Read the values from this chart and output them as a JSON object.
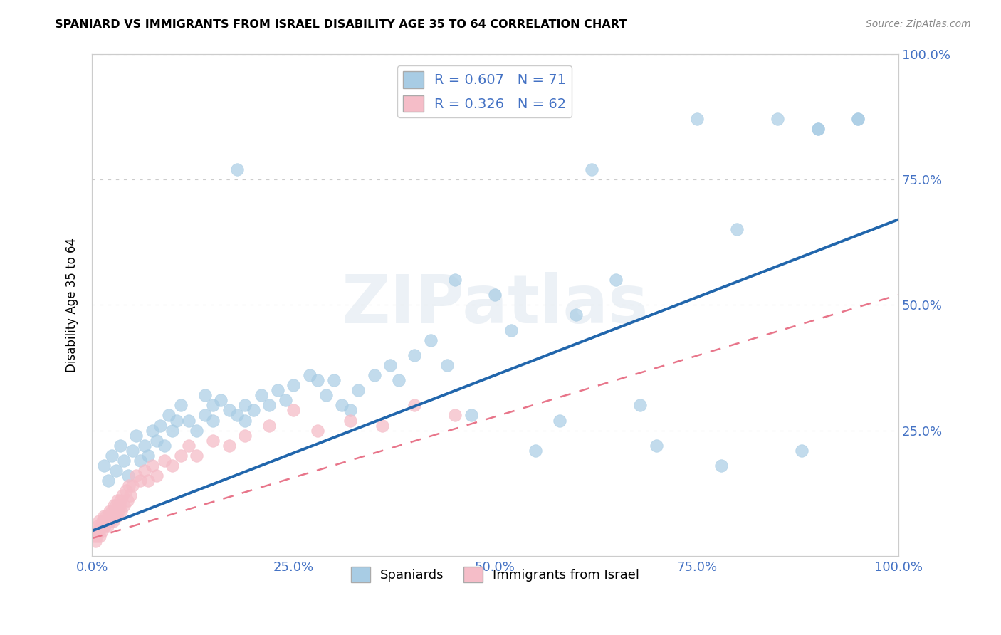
{
  "title": "SPANIARD VS IMMIGRANTS FROM ISRAEL DISABILITY AGE 35 TO 64 CORRELATION CHART",
  "source": "Source: ZipAtlas.com",
  "ylabel": "Disability Age 35 to 64",
  "xlim": [
    0.0,
    1.0
  ],
  "ylim": [
    0.0,
    1.0
  ],
  "xtick_labels": [
    "0.0%",
    "25.0%",
    "50.0%",
    "75.0%",
    "100.0%"
  ],
  "xtick_positions": [
    0.0,
    0.25,
    0.5,
    0.75,
    1.0
  ],
  "ytick_labels": [
    "100.0%",
    "75.0%",
    "50.0%",
    "25.0%"
  ],
  "ytick_positions": [
    1.0,
    0.75,
    0.5,
    0.25
  ],
  "blue_fill_color": "#a8cce4",
  "blue_line_color": "#2166ac",
  "pink_fill_color": "#f5bdc8",
  "pink_line_color": "#e8758a",
  "axis_label_color": "#4472c4",
  "R_blue": 0.607,
  "N_blue": 71,
  "R_pink": 0.326,
  "N_pink": 62,
  "legend_label_blue": "Spaniards",
  "legend_label_pink": "Immigrants from Israel",
  "watermark": "ZIPatlas",
  "bg_color": "#ffffff",
  "grid_color": "#cccccc",
  "blue_line_x0": 0.0,
  "blue_line_y0": 0.05,
  "blue_line_x1": 1.0,
  "blue_line_y1": 0.67,
  "pink_line_x0": 0.0,
  "pink_line_y0": 0.035,
  "pink_line_x1": 1.0,
  "pink_line_y1": 0.52,
  "blue_x": [
    0.015,
    0.02,
    0.025,
    0.03,
    0.035,
    0.04,
    0.045,
    0.05,
    0.055,
    0.06,
    0.065,
    0.07,
    0.075,
    0.08,
    0.085,
    0.09,
    0.095,
    0.1,
    0.105,
    0.11,
    0.12,
    0.13,
    0.14,
    0.14,
    0.15,
    0.15,
    0.16,
    0.17,
    0.18,
    0.19,
    0.19,
    0.2,
    0.21,
    0.22,
    0.18,
    0.23,
    0.24,
    0.25,
    0.27,
    0.28,
    0.29,
    0.3,
    0.31,
    0.32,
    0.33,
    0.35,
    0.37,
    0.38,
    0.4,
    0.42,
    0.44,
    0.45,
    0.47,
    0.5,
    0.52,
    0.55,
    0.58,
    0.6,
    0.62,
    0.65,
    0.68,
    0.7,
    0.75,
    0.78,
    0.8,
    0.85,
    0.88,
    0.9,
    0.95,
    0.9,
    0.95
  ],
  "blue_y": [
    0.18,
    0.15,
    0.2,
    0.17,
    0.22,
    0.19,
    0.16,
    0.21,
    0.24,
    0.19,
    0.22,
    0.2,
    0.25,
    0.23,
    0.26,
    0.22,
    0.28,
    0.25,
    0.27,
    0.3,
    0.27,
    0.25,
    0.28,
    0.32,
    0.3,
    0.27,
    0.31,
    0.29,
    0.77,
    0.3,
    0.27,
    0.29,
    0.32,
    0.3,
    0.28,
    0.33,
    0.31,
    0.34,
    0.36,
    0.35,
    0.32,
    0.35,
    0.3,
    0.29,
    0.33,
    0.36,
    0.38,
    0.35,
    0.4,
    0.43,
    0.38,
    0.55,
    0.28,
    0.52,
    0.45,
    0.21,
    0.27,
    0.48,
    0.77,
    0.55,
    0.3,
    0.22,
    0.87,
    0.18,
    0.65,
    0.87,
    0.21,
    0.85,
    0.87,
    0.85,
    0.87
  ],
  "pink_x": [
    0.003,
    0.004,
    0.005,
    0.006,
    0.007,
    0.008,
    0.009,
    0.01,
    0.011,
    0.012,
    0.013,
    0.014,
    0.015,
    0.016,
    0.017,
    0.018,
    0.019,
    0.02,
    0.021,
    0.022,
    0.023,
    0.024,
    0.025,
    0.026,
    0.027,
    0.028,
    0.029,
    0.03,
    0.031,
    0.032,
    0.033,
    0.034,
    0.035,
    0.036,
    0.038,
    0.04,
    0.042,
    0.044,
    0.046,
    0.048,
    0.05,
    0.055,
    0.06,
    0.065,
    0.07,
    0.075,
    0.08,
    0.09,
    0.1,
    0.11,
    0.12,
    0.13,
    0.15,
    0.17,
    0.19,
    0.22,
    0.25,
    0.28,
    0.32,
    0.36,
    0.4,
    0.45
  ],
  "pink_y": [
    0.04,
    0.03,
    0.05,
    0.04,
    0.06,
    0.05,
    0.07,
    0.04,
    0.06,
    0.05,
    0.07,
    0.06,
    0.08,
    0.06,
    0.07,
    0.08,
    0.06,
    0.08,
    0.07,
    0.09,
    0.07,
    0.08,
    0.09,
    0.07,
    0.1,
    0.08,
    0.09,
    0.1,
    0.08,
    0.11,
    0.09,
    0.1,
    0.11,
    0.09,
    0.12,
    0.1,
    0.13,
    0.11,
    0.14,
    0.12,
    0.14,
    0.16,
    0.15,
    0.17,
    0.15,
    0.18,
    0.16,
    0.19,
    0.18,
    0.2,
    0.22,
    0.2,
    0.23,
    0.22,
    0.24,
    0.26,
    0.29,
    0.25,
    0.27,
    0.26,
    0.3,
    0.28
  ]
}
